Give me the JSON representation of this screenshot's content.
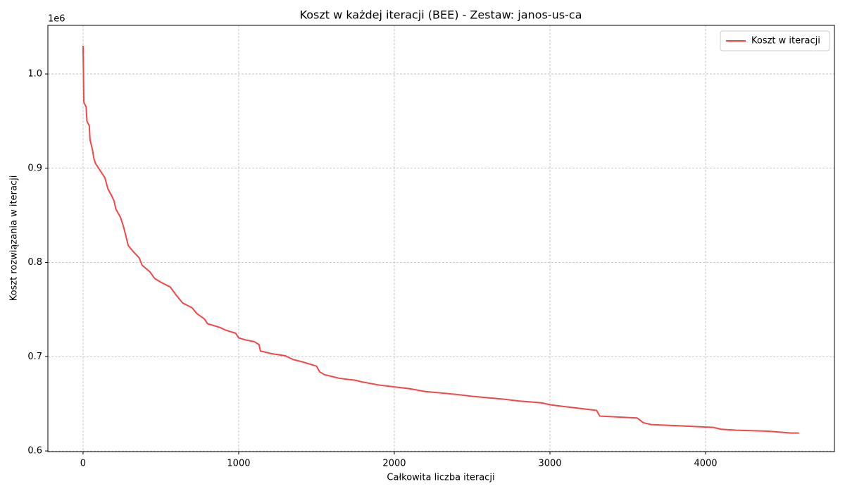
{
  "chart_data": {
    "type": "line",
    "title": "Koszt w każdej iteracji (BEE) - Zestaw: janos-us-ca",
    "x_label": "Całkowita liczba iteracji",
    "y_label": "Koszt rozwiązania w iteracji",
    "y_offset_label": "1e6",
    "x": [
      0,
      2,
      5,
      20,
      25,
      40,
      45,
      60,
      70,
      80,
      100,
      120,
      140,
      160,
      180,
      200,
      210,
      240,
      260,
      280,
      290,
      320,
      360,
      380,
      430,
      460,
      500,
      560,
      600,
      640,
      700,
      730,
      780,
      800,
      880,
      920,
      980,
      1000,
      1040,
      1100,
      1130,
      1140,
      1220,
      1300,
      1350,
      1400,
      1500,
      1520,
      1550,
      1650,
      1750,
      1800,
      1900,
      2000,
      2100,
      2200,
      2400,
      2500,
      2700,
      2800,
      2950,
      3000,
      3100,
      3200,
      3300,
      3320,
      3560,
      3600,
      3650,
      3800,
      4050,
      4100,
      4200,
      4400,
      4550,
      4600
    ],
    "series": [
      {
        "name": "Koszt w iteracji",
        "color": "#f04848",
        "values": [
          1.03,
          1.005,
          0.97,
          0.965,
          0.95,
          0.945,
          0.93,
          0.92,
          0.91,
          0.905,
          0.9,
          0.895,
          0.89,
          0.878,
          0.872,
          0.865,
          0.857,
          0.848,
          0.838,
          0.825,
          0.818,
          0.812,
          0.805,
          0.797,
          0.79,
          0.783,
          0.779,
          0.774,
          0.765,
          0.757,
          0.752,
          0.746,
          0.74,
          0.735,
          0.731,
          0.728,
          0.725,
          0.72,
          0.718,
          0.716,
          0.713,
          0.706,
          0.703,
          0.701,
          0.697,
          0.695,
          0.69,
          0.684,
          0.681,
          0.677,
          0.675,
          0.673,
          0.67,
          0.668,
          0.666,
          0.663,
          0.66,
          0.658,
          0.655,
          0.653,
          0.651,
          0.649,
          0.647,
          0.645,
          0.643,
          0.637,
          0.635,
          0.63,
          0.628,
          0.627,
          0.625,
          0.623,
          0.622,
          0.621,
          0.619,
          0.619
        ]
      }
    ],
    "xlim": [
      -226,
      4828
    ],
    "xticks": [
      0,
      1000,
      2000,
      3000,
      4000
    ],
    "ylim": [
      0.5993,
      1.0516
    ],
    "yticks": [
      0.6,
      0.7,
      0.8,
      0.9,
      {
        "value": 1,
        "label": "1.0"
      }
    ],
    "grid": true,
    "legend": "upper right"
  }
}
